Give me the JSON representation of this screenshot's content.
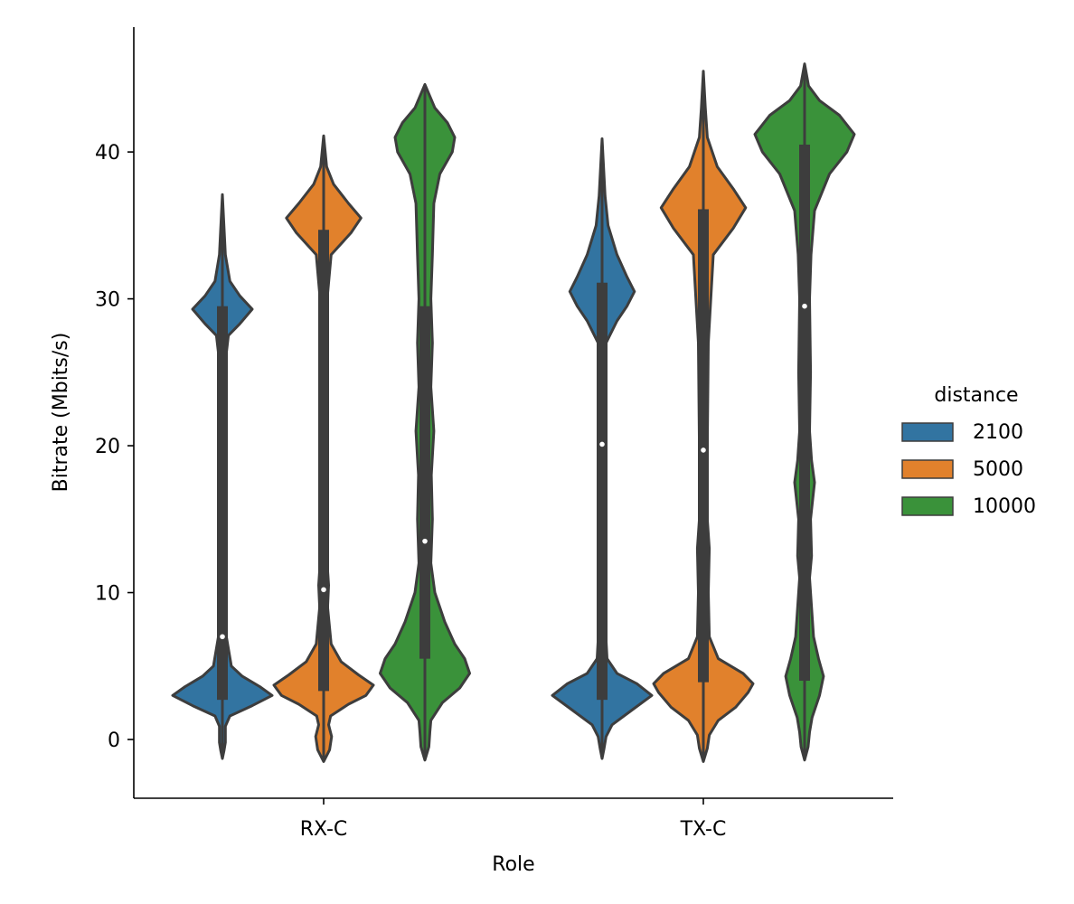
{
  "chart_data": {
    "type": "violin",
    "xlabel": "Role",
    "ylabel": "Bitrate (Mbits/s)",
    "categories": [
      "RX-C",
      "TX-C"
    ],
    "ylim": [
      -4,
      48.5
    ],
    "yticks": [
      0,
      10,
      20,
      30,
      40
    ],
    "grid": false,
    "legend": {
      "title": "distance",
      "placement": "right",
      "entries": [
        "2100",
        "5000",
        "10000"
      ]
    },
    "series": [
      {
        "name": "2100",
        "color": "#3274a1",
        "violins": [
          {
            "category": "RX-C",
            "min": -1.3,
            "max": 37.1,
            "q1": 2.7,
            "median": 7.0,
            "q3": 29.5,
            "profile": [
              [
                -1.3,
                0.0
              ],
              [
                -0.8,
                0.03
              ],
              [
                -0.2,
                0.06
              ],
              [
                0.3,
                0.06
              ],
              [
                0.9,
                0.06
              ],
              [
                1.6,
                0.15
              ],
              [
                2.3,
                0.6
              ],
              [
                3.0,
                1.0
              ],
              [
                3.6,
                0.75
              ],
              [
                4.3,
                0.4
              ],
              [
                5.0,
                0.18
              ],
              [
                7.0,
                0.08
              ],
              [
                12.0,
                0.06
              ],
              [
                20.0,
                0.06
              ],
              [
                26.0,
                0.07
              ],
              [
                27.5,
                0.12
              ],
              [
                28.3,
                0.35
              ],
              [
                29.3,
                0.6
              ],
              [
                30.2,
                0.35
              ],
              [
                31.2,
                0.15
              ],
              [
                33.0,
                0.06
              ],
              [
                35.0,
                0.03
              ],
              [
                37.1,
                0.0
              ]
            ]
          },
          {
            "category": "TX-C",
            "min": -1.3,
            "max": 40.9,
            "q1": 2.7,
            "median": 20.1,
            "q3": 31.1,
            "profile": [
              [
                -1.3,
                0.0
              ],
              [
                -0.6,
                0.04
              ],
              [
                0.2,
                0.08
              ],
              [
                1.0,
                0.2
              ],
              [
                2.0,
                0.6
              ],
              [
                3.0,
                1.0
              ],
              [
                3.8,
                0.7
              ],
              [
                4.5,
                0.3
              ],
              [
                5.5,
                0.1
              ],
              [
                8.0,
                0.06
              ],
              [
                20.0,
                0.06
              ],
              [
                27.0,
                0.08
              ],
              [
                28.5,
                0.3
              ],
              [
                29.5,
                0.5
              ],
              [
                30.5,
                0.65
              ],
              [
                31.5,
                0.5
              ],
              [
                33.0,
                0.3
              ],
              [
                35.0,
                0.12
              ],
              [
                37.0,
                0.06
              ],
              [
                40.9,
                0.0
              ]
            ]
          }
        ]
      },
      {
        "name": "5000",
        "color": "#e1812c",
        "violins": [
          {
            "category": "RX-C",
            "min": -1.5,
            "max": 41.1,
            "q1": 3.3,
            "median": 10.2,
            "q3": 34.7,
            "profile": [
              [
                -1.5,
                0.0
              ],
              [
                -0.7,
                0.12
              ],
              [
                0.2,
                0.16
              ],
              [
                1.0,
                0.1
              ],
              [
                1.6,
                0.14
              ],
              [
                2.4,
                0.5
              ],
              [
                3.0,
                0.85
              ],
              [
                3.7,
                1.0
              ],
              [
                4.4,
                0.7
              ],
              [
                5.3,
                0.35
              ],
              [
                6.5,
                0.15
              ],
              [
                9.0,
                0.08
              ],
              [
                10.5,
                0.1
              ],
              [
                12.0,
                0.07
              ],
              [
                20.0,
                0.06
              ],
              [
                30.0,
                0.07
              ],
              [
                33.0,
                0.15
              ],
              [
                34.5,
                0.55
              ],
              [
                35.5,
                0.75
              ],
              [
                36.5,
                0.5
              ],
              [
                37.8,
                0.2
              ],
              [
                39.0,
                0.06
              ],
              [
                41.1,
                0.0
              ]
            ]
          },
          {
            "category": "TX-C",
            "min": -1.5,
            "max": 45.5,
            "q1": 3.9,
            "median": 19.7,
            "q3": 36.1,
            "profile": [
              [
                -1.5,
                0.0
              ],
              [
                -0.6,
                0.08
              ],
              [
                0.3,
                0.12
              ],
              [
                1.3,
                0.3
              ],
              [
                2.2,
                0.65
              ],
              [
                3.2,
                0.9
              ],
              [
                3.8,
                1.0
              ],
              [
                4.5,
                0.8
              ],
              [
                5.5,
                0.3
              ],
              [
                7.0,
                0.12
              ],
              [
                10.0,
                0.1
              ],
              [
                13.0,
                0.12
              ],
              [
                15.0,
                0.08
              ],
              [
                20.0,
                0.08
              ],
              [
                27.0,
                0.1
              ],
              [
                33.0,
                0.2
              ],
              [
                34.8,
                0.6
              ],
              [
                36.2,
                0.85
              ],
              [
                37.5,
                0.6
              ],
              [
                39.0,
                0.28
              ],
              [
                41.0,
                0.08
              ],
              [
                43.0,
                0.04
              ],
              [
                45.5,
                0.0
              ]
            ]
          }
        ]
      },
      {
        "name": "10000",
        "color": "#3a923a",
        "violins": [
          {
            "category": "RX-C",
            "min": -1.4,
            "max": 44.6,
            "q1": 5.5,
            "median": 13.5,
            "q3": 29.5,
            "profile": [
              [
                -1.4,
                0.0
              ],
              [
                -0.5,
                0.08
              ],
              [
                0.5,
                0.1
              ],
              [
                1.3,
                0.12
              ],
              [
                2.5,
                0.35
              ],
              [
                3.5,
                0.7
              ],
              [
                4.5,
                0.9
              ],
              [
                5.5,
                0.8
              ],
              [
                6.5,
                0.6
              ],
              [
                8.0,
                0.4
              ],
              [
                10.0,
                0.2
              ],
              [
                12.0,
                0.12
              ],
              [
                15.0,
                0.15
              ],
              [
                18.0,
                0.13
              ],
              [
                21.0,
                0.18
              ],
              [
                24.0,
                0.12
              ],
              [
                27.0,
                0.15
              ],
              [
                30.0,
                0.12
              ],
              [
                33.0,
                0.15
              ],
              [
                36.5,
                0.18
              ],
              [
                38.5,
                0.3
              ],
              [
                40.0,
                0.55
              ],
              [
                41.0,
                0.6
              ],
              [
                42.0,
                0.45
              ],
              [
                43.0,
                0.2
              ],
              [
                44.6,
                0.0
              ]
            ]
          },
          {
            "category": "TX-C",
            "min": -1.4,
            "max": 46.0,
            "q1": 4.0,
            "median": 29.5,
            "q3": 40.5,
            "profile": [
              [
                -1.4,
                0.0
              ],
              [
                -0.5,
                0.07
              ],
              [
                0.5,
                0.1
              ],
              [
                1.5,
                0.15
              ],
              [
                3.0,
                0.3
              ],
              [
                4.3,
                0.38
              ],
              [
                5.5,
                0.28
              ],
              [
                7.0,
                0.18
              ],
              [
                9.0,
                0.14
              ],
              [
                11.0,
                0.1
              ],
              [
                12.5,
                0.14
              ],
              [
                15.0,
                0.12
              ],
              [
                17.5,
                0.2
              ],
              [
                19.0,
                0.14
              ],
              [
                21.0,
                0.1
              ],
              [
                25.0,
                0.12
              ],
              [
                30.0,
                0.1
              ],
              [
                33.0,
                0.13
              ],
              [
                36.0,
                0.2
              ],
              [
                38.5,
                0.5
              ],
              [
                40.0,
                0.85
              ],
              [
                41.2,
                1.0
              ],
              [
                42.5,
                0.7
              ],
              [
                43.5,
                0.3
              ],
              [
                44.5,
                0.08
              ],
              [
                46.0,
                0.0
              ]
            ]
          }
        ]
      }
    ]
  }
}
